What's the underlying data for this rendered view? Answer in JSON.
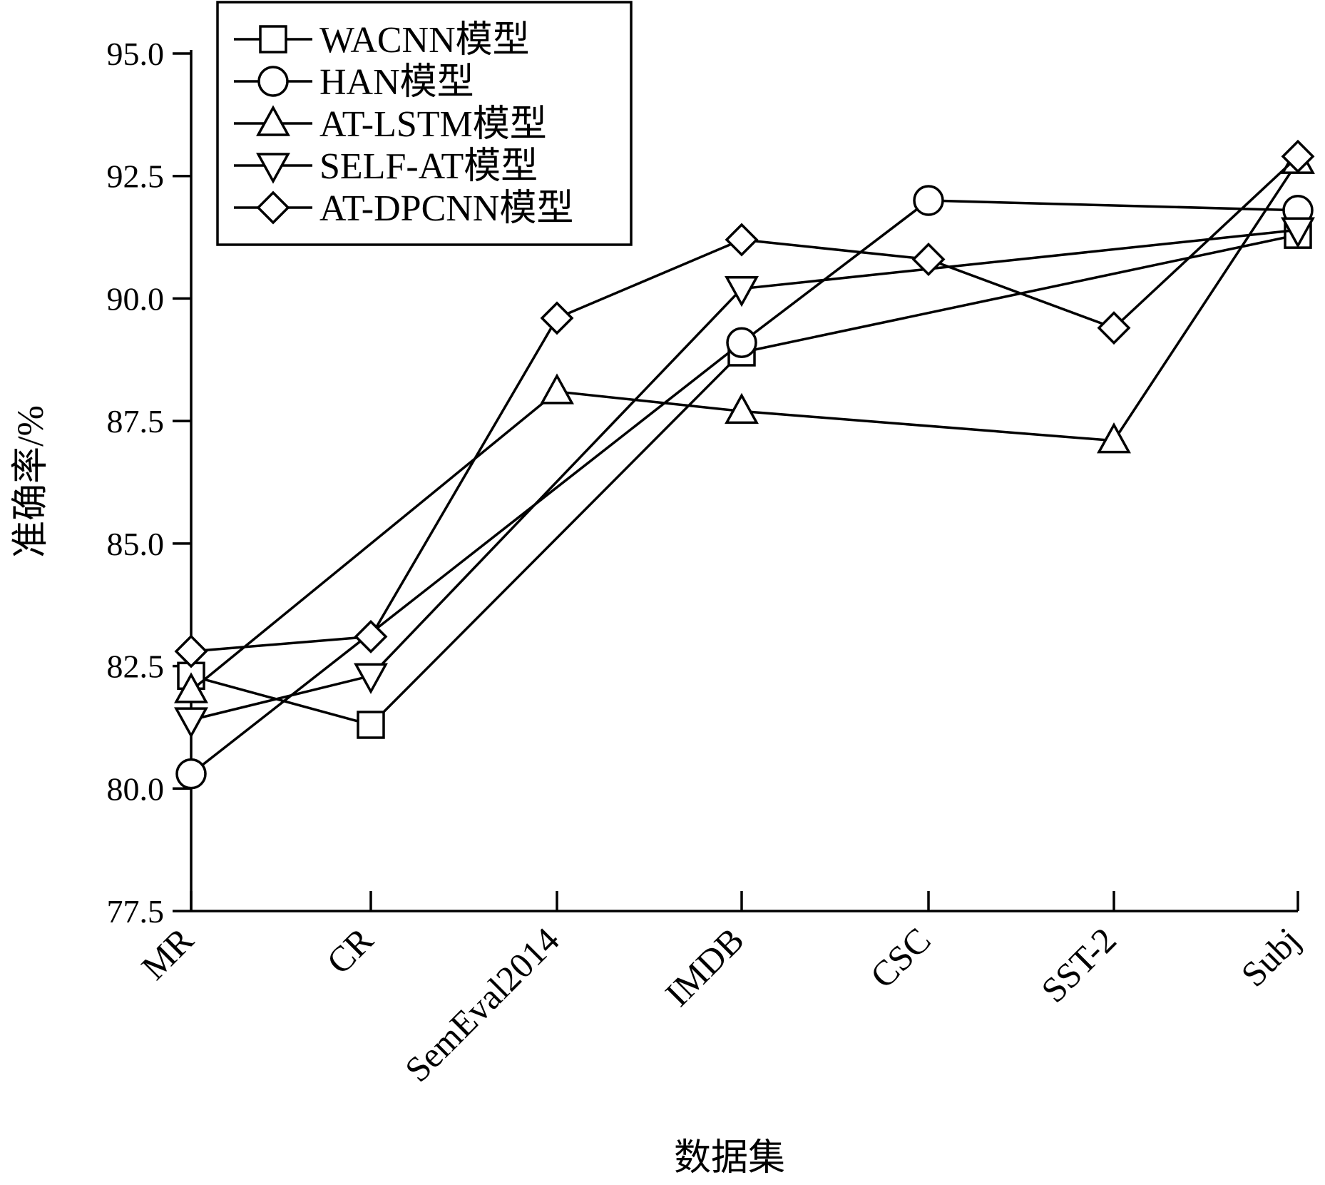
{
  "chart_data": {
    "type": "line",
    "xlabel": "数据集",
    "ylabel": "准确率/%",
    "ylim": [
      77.5,
      95.0
    ],
    "yticks": [
      "77.5",
      "80.0",
      "82.5",
      "85.0",
      "87.5",
      "90.0",
      "92.5",
      "95.0"
    ],
    "categories": [
      "MR",
      "CR",
      "SemEval2014",
      "IMDB",
      "CSC",
      "SST-2",
      "Subj"
    ],
    "grid": false,
    "legend_position": "top-left",
    "series": [
      {
        "name": "WACNN模型",
        "marker": "square",
        "values": [
          82.3,
          81.3,
          null,
          88.9,
          null,
          null,
          91.3
        ]
      },
      {
        "name": "HAN模型",
        "marker": "circle",
        "values": [
          80.3,
          null,
          null,
          89.1,
          92.0,
          null,
          91.8
        ]
      },
      {
        "name": "AT-LSTM模型",
        "marker": "triangle-up",
        "values": [
          82.0,
          null,
          88.1,
          87.7,
          null,
          87.1,
          92.8
        ]
      },
      {
        "name": "SELF-AT模型",
        "marker": "triangle-down",
        "values": [
          81.4,
          82.3,
          null,
          90.2,
          null,
          null,
          91.4
        ]
      },
      {
        "name": "AT-DPCNN模型",
        "marker": "diamond",
        "values": [
          82.8,
          83.1,
          89.6,
          91.2,
          90.8,
          89.4,
          92.9
        ]
      }
    ]
  }
}
